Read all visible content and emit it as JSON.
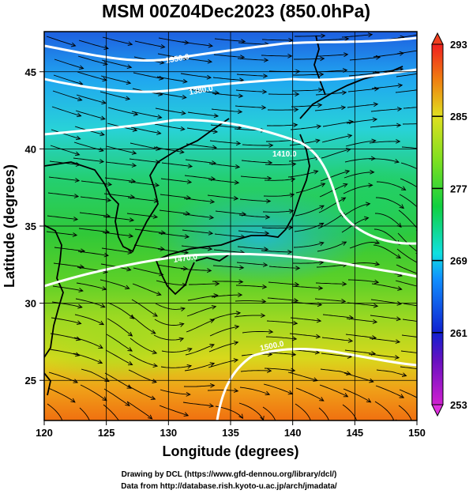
{
  "chart_data": {
    "type": "heatmap",
    "title": "MSM 00Z04Dec2023 (850.0hPa)",
    "xlabel": "Longitude (degrees)",
    "ylabel": "Latitude  (degrees)",
    "xlim": [
      120,
      150
    ],
    "ylim": [
      22.4,
      47.6
    ],
    "x_ticks": [
      120,
      125,
      130,
      135,
      140,
      145,
      150
    ],
    "y_ticks": [
      25,
      30,
      35,
      40,
      45
    ],
    "colorbar": {
      "min": 253,
      "max": 293,
      "ticks": [
        253,
        261,
        269,
        277,
        285,
        293
      ]
    },
    "contours": [
      {
        "label": "1350.0"
      },
      {
        "label": "1380.0"
      },
      {
        "label": "1410.0"
      },
      {
        "label": "1470.0"
      },
      {
        "label": "1500.0"
      }
    ],
    "temperature_field_estimates": [
      {
        "lat": 47,
        "lon": 121,
        "value": 261
      },
      {
        "lat": 45,
        "lon": 132,
        "value": 264
      },
      {
        "lat": 43,
        "lon": 140,
        "value": 266
      },
      {
        "lat": 40,
        "lon": 130,
        "value": 272
      },
      {
        "lat": 37,
        "lon": 124,
        "value": 277
      },
      {
        "lat": 34,
        "lon": 138,
        "value": 272
      },
      {
        "lat": 30,
        "lon": 125,
        "value": 279
      },
      {
        "lat": 28,
        "lon": 140,
        "value": 280
      },
      {
        "lat": 25,
        "lon": 125,
        "value": 285
      },
      {
        "lat": 23,
        "lon": 140,
        "value": 287
      }
    ]
  },
  "credits": {
    "line1": "Drawing by DCL (https://www.gfd-dennou.org/library/dcl/)",
    "line2": "Data from http://database.rish.kyoto-u.ac.jp/arch/jmadata/"
  },
  "colors": {
    "cold": "#1a2fd9",
    "cool": "#3fd0e0",
    "mid": "#21c940",
    "warm": "#d8e21a",
    "hot": "#f06a10",
    "contour": "#ffffff"
  }
}
